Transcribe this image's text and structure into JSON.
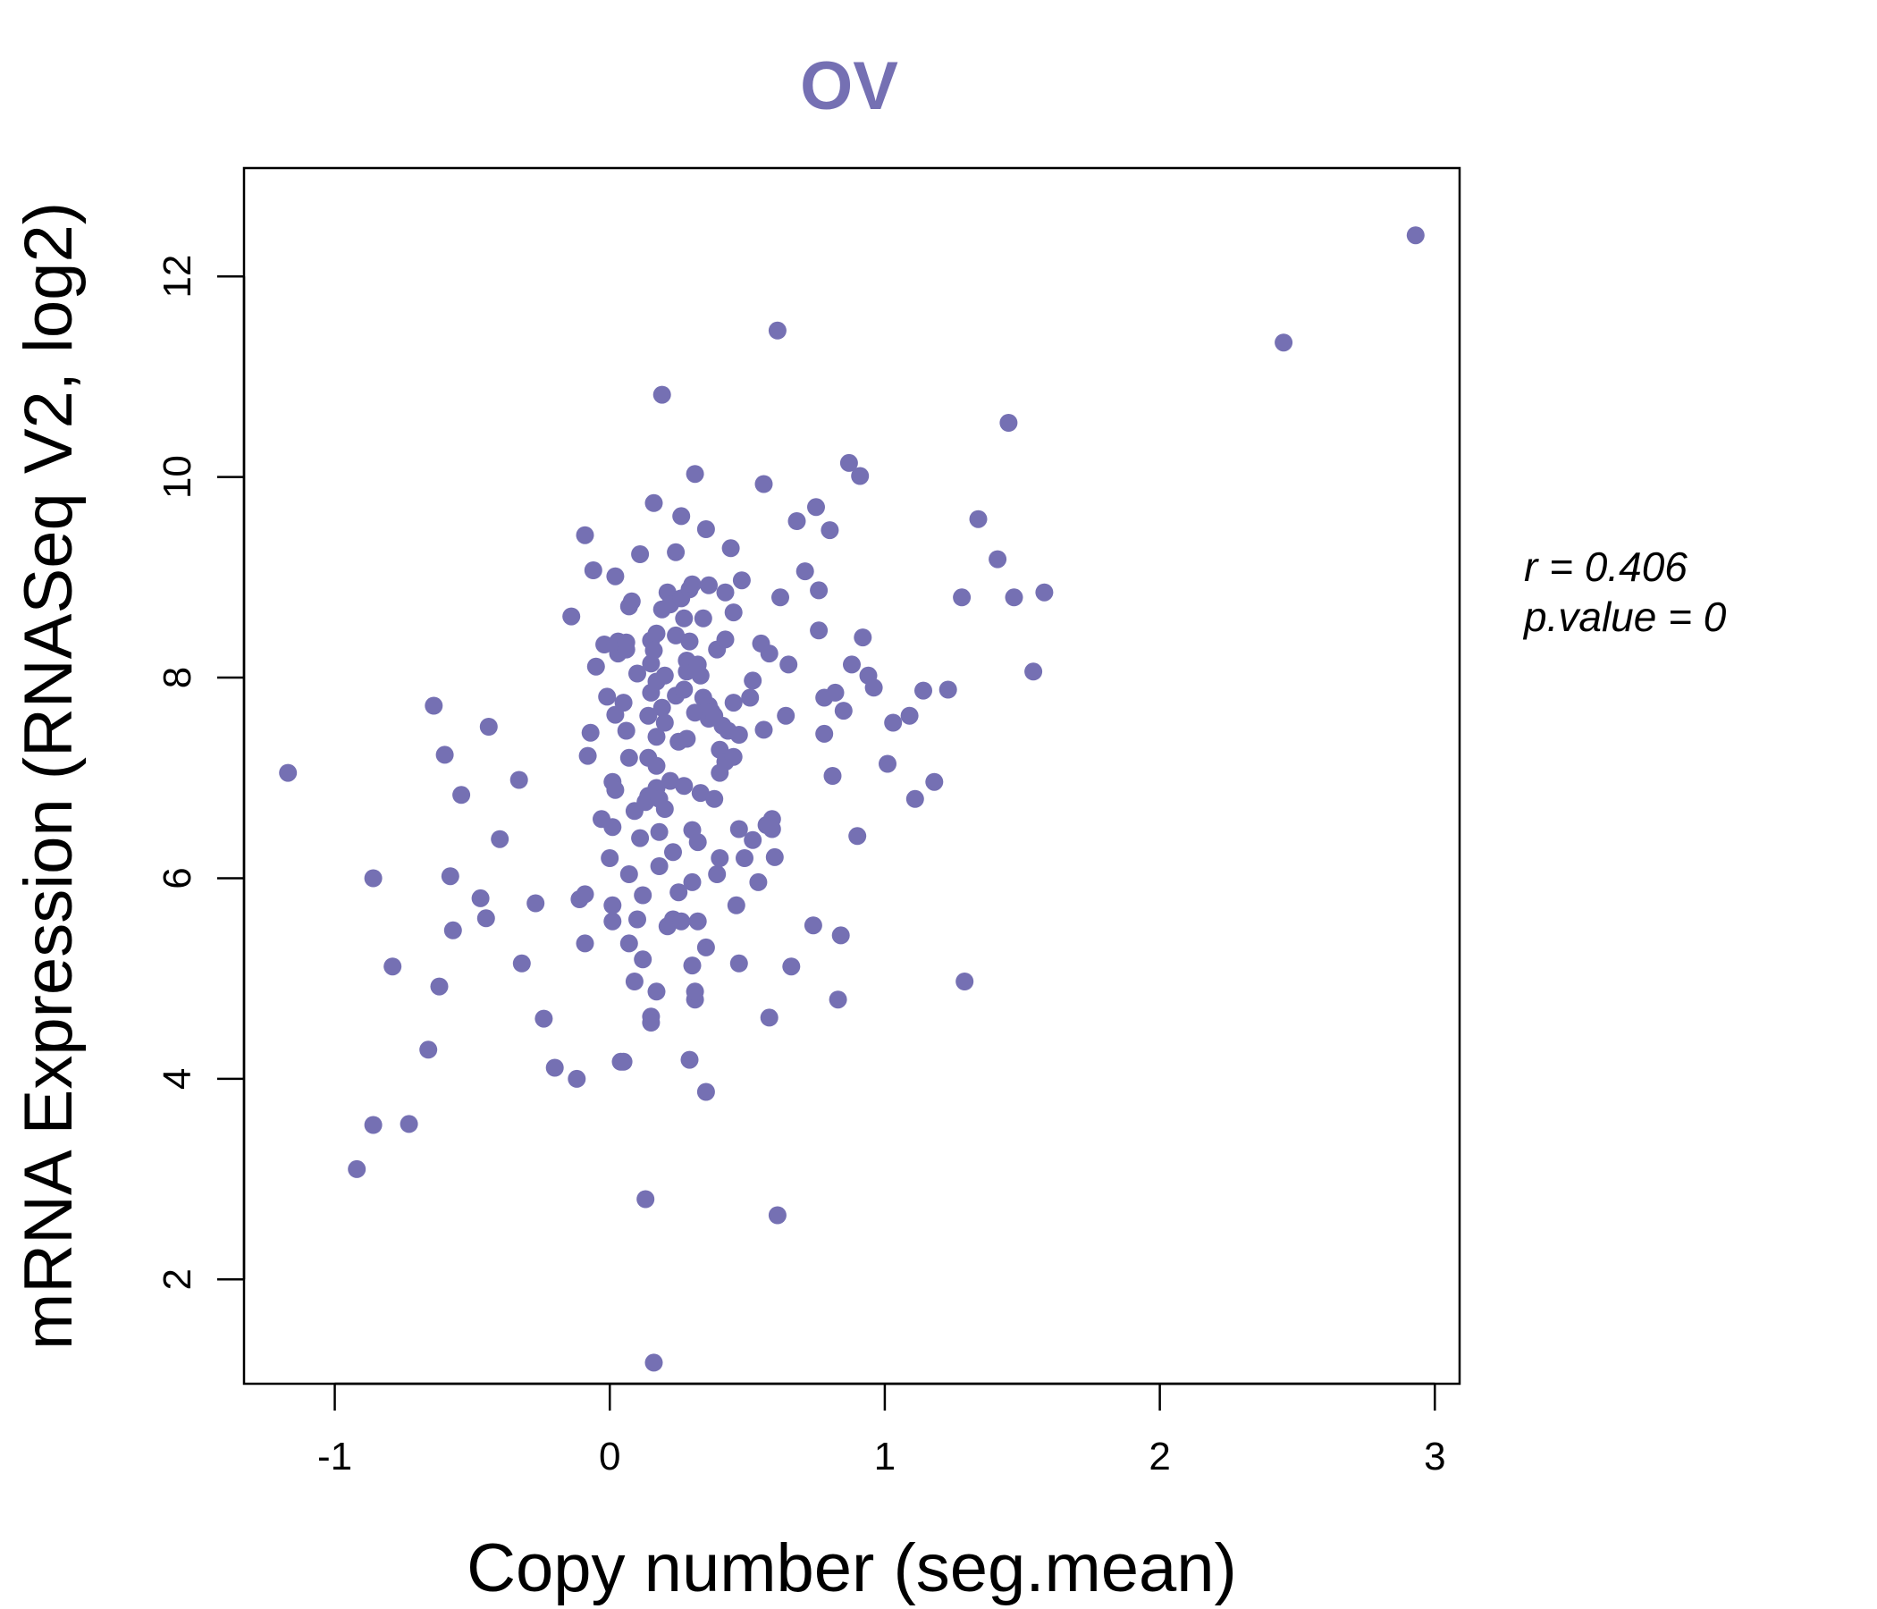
{
  "chart_data": {
    "type": "scatter",
    "title": "OV",
    "xlabel": "Copy number (seg.mean)",
    "ylabel": "mRNA Expression (RNASeq V2, log2)",
    "xlim": [
      -1.33,
      3.09
    ],
    "ylim": [
      0.96,
      13.08
    ],
    "xticks": [
      -1,
      0,
      1,
      2,
      3
    ],
    "yticks": [
      2,
      4,
      6,
      8,
      10,
      12
    ],
    "x_tick_labels": [
      "-1",
      "0",
      "1",
      "2",
      "3"
    ],
    "y_tick_labels": [
      "2",
      "4",
      "6",
      "8",
      "10",
      "12"
    ],
    "annotation": {
      "r_label": "r = 0.406",
      "p_label": "p.value = 0"
    },
    "colors": {
      "points": "#7570b3",
      "title": "#7570b3",
      "axis": "#000000"
    },
    "points": [
      [
        -1.17,
        7.05
      ],
      [
        -0.92,
        3.1
      ],
      [
        -0.86,
        3.54
      ],
      [
        -0.86,
        6.0
      ],
      [
        -0.79,
        5.12
      ],
      [
        -0.73,
        3.55
      ],
      [
        -0.66,
        4.29
      ],
      [
        -0.64,
        7.72
      ],
      [
        -0.62,
        4.92
      ],
      [
        -0.6,
        7.23
      ],
      [
        -0.58,
        6.02
      ],
      [
        -0.57,
        5.48
      ],
      [
        -0.54,
        6.83
      ],
      [
        -0.47,
        5.8
      ],
      [
        -0.45,
        5.6
      ],
      [
        -0.44,
        7.51
      ],
      [
        -0.4,
        6.39
      ],
      [
        -0.33,
        6.98
      ],
      [
        -0.32,
        5.15
      ],
      [
        -0.27,
        5.75
      ],
      [
        -0.24,
        4.6
      ],
      [
        -0.2,
        4.11
      ],
      [
        -0.14,
        8.61
      ],
      [
        -0.12,
        4.0
      ],
      [
        -0.11,
        5.79
      ],
      [
        -0.09,
        5.84
      ],
      [
        -0.09,
        9.42
      ],
      [
        -0.09,
        5.35
      ],
      [
        -0.08,
        7.22
      ],
      [
        -0.07,
        7.45
      ],
      [
        -0.06,
        9.07
      ],
      [
        -0.05,
        8.11
      ],
      [
        -0.03,
        6.59
      ],
      [
        -0.02,
        8.33
      ],
      [
        -0.01,
        7.81
      ],
      [
        0.0,
        6.2
      ],
      [
        0.01,
        5.73
      ],
      [
        0.01,
        5.57
      ],
      [
        0.01,
        6.51
      ],
      [
        0.01,
        6.96
      ],
      [
        0.02,
        7.63
      ],
      [
        0.02,
        9.01
      ],
      [
        0.02,
        8.32
      ],
      [
        0.02,
        6.88
      ],
      [
        0.03,
        8.24
      ],
      [
        0.03,
        8.36
      ],
      [
        0.04,
        4.17
      ],
      [
        0.05,
        7.75
      ],
      [
        0.05,
        4.17
      ],
      [
        0.06,
        8.28
      ],
      [
        0.06,
        8.35
      ],
      [
        0.06,
        7.47
      ],
      [
        0.07,
        6.04
      ],
      [
        0.07,
        5.35
      ],
      [
        0.07,
        7.2
      ],
      [
        0.07,
        8.71
      ],
      [
        0.08,
        8.76
      ],
      [
        0.09,
        6.67
      ],
      [
        0.09,
        4.97
      ],
      [
        0.1,
        5.59
      ],
      [
        0.1,
        8.04
      ],
      [
        0.11,
        6.4
      ],
      [
        0.11,
        9.23
      ],
      [
        0.12,
        5.83
      ],
      [
        0.12,
        5.19
      ],
      [
        0.13,
        2.8
      ],
      [
        0.13,
        6.76
      ],
      [
        0.14,
        7.62
      ],
      [
        0.14,
        7.2
      ],
      [
        0.14,
        6.82
      ],
      [
        0.15,
        4.62
      ],
      [
        0.15,
        4.56
      ],
      [
        0.15,
        8.14
      ],
      [
        0.15,
        8.37
      ],
      [
        0.15,
        7.85
      ],
      [
        0.16,
        8.27
      ],
      [
        0.16,
        9.74
      ],
      [
        0.16,
        1.17
      ],
      [
        0.17,
        4.87
      ],
      [
        0.17,
        8.44
      ],
      [
        0.17,
        7.96
      ],
      [
        0.17,
        7.41
      ],
      [
        0.17,
        6.9
      ],
      [
        0.17,
        7.12
      ],
      [
        0.18,
        6.79
      ],
      [
        0.18,
        6.12
      ],
      [
        0.18,
        6.46
      ],
      [
        0.19,
        10.82
      ],
      [
        0.19,
        8.68
      ],
      [
        0.19,
        7.7
      ],
      [
        0.2,
        6.69
      ],
      [
        0.2,
        8.02
      ],
      [
        0.2,
        7.55
      ],
      [
        0.21,
        5.52
      ],
      [
        0.21,
        8.85
      ],
      [
        0.22,
        8.73
      ],
      [
        0.22,
        6.97
      ],
      [
        0.23,
        5.59
      ],
      [
        0.23,
        6.26
      ],
      [
        0.24,
        7.82
      ],
      [
        0.24,
        9.25
      ],
      [
        0.24,
        8.42
      ],
      [
        0.25,
        7.36
      ],
      [
        0.25,
        5.86
      ],
      [
        0.26,
        8.79
      ],
      [
        0.26,
        9.61
      ],
      [
        0.26,
        5.57
      ],
      [
        0.27,
        8.59
      ],
      [
        0.27,
        7.88
      ],
      [
        0.27,
        6.92
      ],
      [
        0.28,
        8.06
      ],
      [
        0.28,
        7.39
      ],
      [
        0.28,
        8.17
      ],
      [
        0.29,
        8.36
      ],
      [
        0.29,
        8.88
      ],
      [
        0.29,
        4.19
      ],
      [
        0.3,
        6.48
      ],
      [
        0.3,
        5.13
      ],
      [
        0.3,
        8.93
      ],
      [
        0.3,
        5.96
      ],
      [
        0.31,
        4.79
      ],
      [
        0.31,
        4.87
      ],
      [
        0.31,
        7.65
      ],
      [
        0.31,
        10.03
      ],
      [
        0.32,
        6.36
      ],
      [
        0.32,
        8.13
      ],
      [
        0.32,
        5.57
      ],
      [
        0.33,
        8.02
      ],
      [
        0.33,
        6.85
      ],
      [
        0.34,
        7.8
      ],
      [
        0.34,
        8.59
      ],
      [
        0.35,
        9.48
      ],
      [
        0.35,
        5.31
      ],
      [
        0.35,
        3.87
      ],
      [
        0.36,
        8.92
      ],
      [
        0.36,
        7.72
      ],
      [
        0.36,
        7.59
      ],
      [
        0.37,
        7.66
      ],
      [
        0.38,
        6.79
      ],
      [
        0.38,
        7.62
      ],
      [
        0.39,
        8.28
      ],
      [
        0.39,
        6.04
      ],
      [
        0.4,
        7.28
      ],
      [
        0.4,
        7.05
      ],
      [
        0.4,
        6.2
      ],
      [
        0.41,
        7.52
      ],
      [
        0.42,
        8.38
      ],
      [
        0.42,
        8.85
      ],
      [
        0.42,
        7.16
      ],
      [
        0.43,
        7.47
      ],
      [
        0.44,
        9.29
      ],
      [
        0.45,
        8.65
      ],
      [
        0.45,
        7.75
      ],
      [
        0.45,
        7.21
      ],
      [
        0.46,
        5.73
      ],
      [
        0.47,
        7.43
      ],
      [
        0.47,
        6.49
      ],
      [
        0.47,
        5.15
      ],
      [
        0.48,
        8.97
      ],
      [
        0.49,
        6.2
      ],
      [
        0.51,
        7.8
      ],
      [
        0.52,
        6.38
      ],
      [
        0.52,
        7.97
      ],
      [
        0.54,
        5.96
      ],
      [
        0.55,
        8.34
      ],
      [
        0.56,
        7.48
      ],
      [
        0.56,
        9.93
      ],
      [
        0.57,
        6.53
      ],
      [
        0.58,
        4.61
      ],
      [
        0.58,
        8.24
      ],
      [
        0.59,
        6.59
      ],
      [
        0.59,
        6.49
      ],
      [
        0.6,
        6.21
      ],
      [
        0.61,
        11.46
      ],
      [
        0.61,
        2.64
      ],
      [
        0.62,
        8.8
      ],
      [
        0.64,
        7.62
      ],
      [
        0.65,
        8.13
      ],
      [
        0.66,
        5.12
      ],
      [
        0.68,
        9.56
      ],
      [
        0.71,
        9.06
      ],
      [
        0.74,
        5.53
      ],
      [
        0.75,
        9.7
      ],
      [
        0.76,
        8.47
      ],
      [
        0.76,
        8.87
      ],
      [
        0.78,
        7.44
      ],
      [
        0.78,
        7.8
      ],
      [
        0.8,
        9.47
      ],
      [
        0.81,
        7.02
      ],
      [
        0.82,
        7.85
      ],
      [
        0.83,
        4.79
      ],
      [
        0.84,
        5.43
      ],
      [
        0.85,
        7.67
      ],
      [
        0.87,
        10.14
      ],
      [
        0.88,
        8.13
      ],
      [
        0.9,
        6.42
      ],
      [
        0.91,
        10.01
      ],
      [
        0.92,
        8.4
      ],
      [
        0.94,
        8.02
      ],
      [
        0.96,
        7.9
      ],
      [
        1.01,
        7.14
      ],
      [
        1.03,
        7.55
      ],
      [
        1.09,
        7.62
      ],
      [
        1.11,
        6.79
      ],
      [
        1.14,
        7.87
      ],
      [
        1.18,
        6.96
      ],
      [
        1.23,
        7.88
      ],
      [
        1.28,
        8.8
      ],
      [
        1.29,
        4.97
      ],
      [
        1.34,
        9.58
      ],
      [
        1.41,
        9.18
      ],
      [
        1.45,
        10.54
      ],
      [
        1.47,
        8.8
      ],
      [
        1.54,
        8.06
      ],
      [
        1.58,
        8.85
      ],
      [
        2.45,
        11.34
      ],
      [
        2.93,
        12.41
      ]
    ]
  }
}
